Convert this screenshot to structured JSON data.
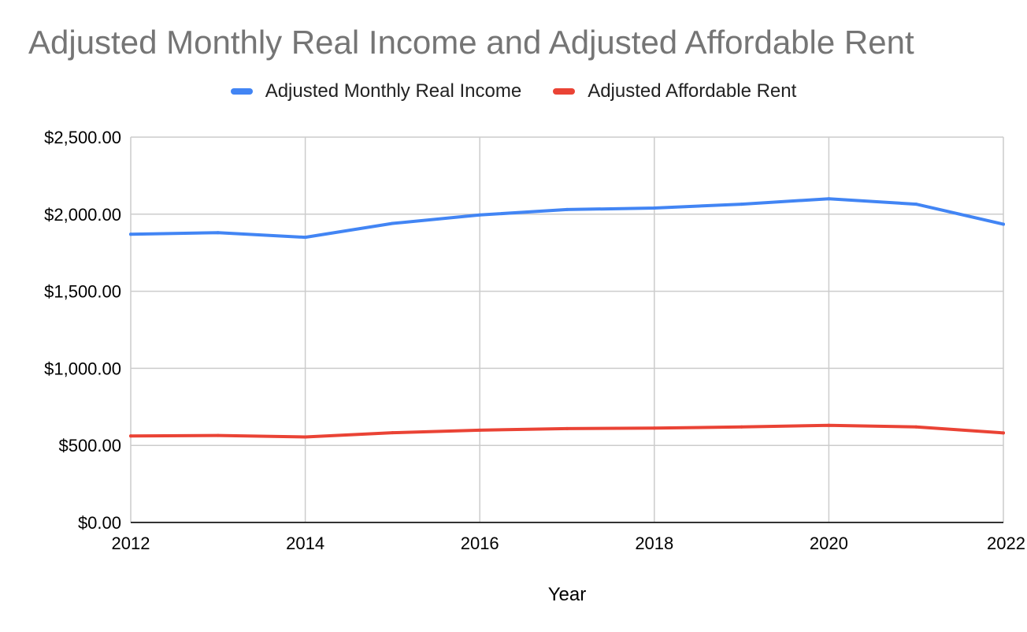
{
  "chart_data": {
    "type": "line",
    "title": "Adjusted Monthly Real Income and Adjusted Affordable Rent",
    "xlabel": "Year",
    "ylabel": "",
    "x": [
      2012,
      2013,
      2014,
      2015,
      2016,
      2017,
      2018,
      2019,
      2020,
      2021,
      2022
    ],
    "x_ticks": [
      "2012",
      "2014",
      "2016",
      "2018",
      "2020",
      "2022"
    ],
    "xlim": [
      2012,
      2022
    ],
    "ylim": [
      0,
      2500
    ],
    "y_ticks": [
      "$0.00",
      "$500.00",
      "$1,000.00",
      "$1,500.00",
      "$2,000.00",
      "$2,500.00"
    ],
    "grid": true,
    "legend_position": "top",
    "series": [
      {
        "name": "Adjusted Monthly Real Income",
        "color": "#4285f4",
        "values": [
          1870,
          1880,
          1850,
          1940,
          1995,
          2030,
          2040,
          2065,
          2100,
          2065,
          1935
        ]
      },
      {
        "name": "Adjusted Affordable Rent",
        "color": "#ea4335",
        "values": [
          561,
          564,
          555,
          582,
          599,
          609,
          612,
          620,
          630,
          620,
          581
        ]
      }
    ]
  }
}
